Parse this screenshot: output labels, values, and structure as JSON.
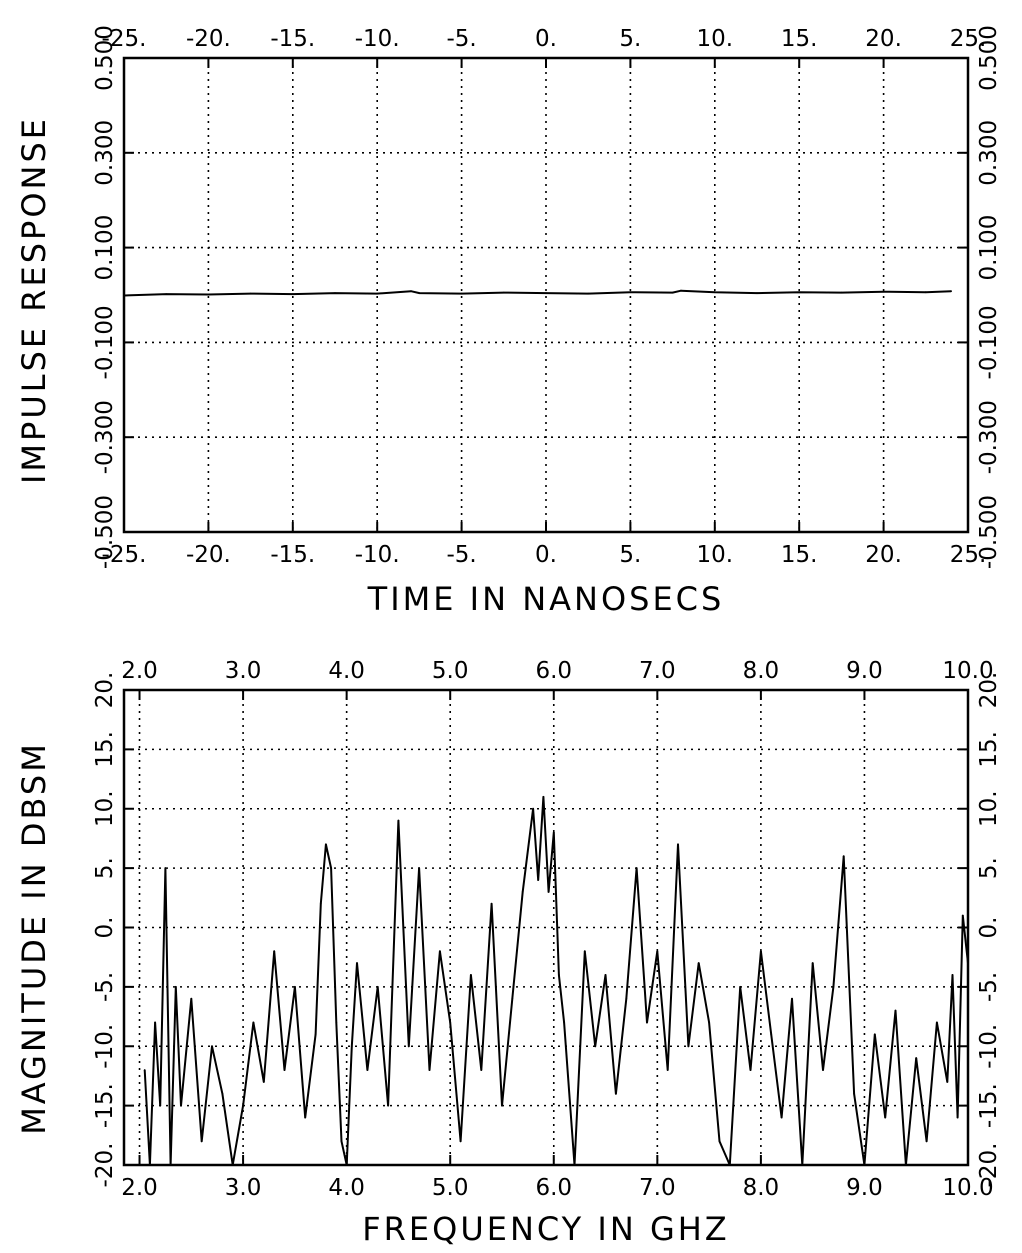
{
  "chart_data": [
    {
      "type": "line",
      "title": "",
      "xlabel": "TIME IN NANOSECS",
      "ylabel": "IMPULSE RESPONSE",
      "xlim": [
        -25,
        25
      ],
      "ylim": [
        -0.5,
        0.5
      ],
      "grid": true,
      "x_ticks": [
        -25,
        -20,
        -15,
        -10,
        -5,
        0,
        5,
        10,
        15,
        20,
        25
      ],
      "x_tick_labels": [
        "-25.",
        "-20.",
        "-15.",
        "-10.",
        "-5.",
        "0.",
        "5.",
        "10.",
        "15.",
        "20.",
        "25."
      ],
      "y_ticks": [
        -0.5,
        -0.3,
        -0.1,
        0.1,
        0.3,
        0.5
      ],
      "y_tick_labels": [
        "-0.500",
        "-0.300",
        "-0.100",
        "0.100",
        "0.300",
        "0.500"
      ],
      "series": [
        {
          "x": [
            -25,
            -22.5,
            -20,
            -17.5,
            -15,
            -12.5,
            -10,
            -8,
            -7.5,
            -5,
            -2.5,
            0,
            2.5,
            5,
            7.5,
            8,
            10,
            12.5,
            15,
            17.5,
            20,
            22.5,
            24
          ],
          "values": [
            -0.001,
            0.002,
            0.001,
            0.003,
            0.002,
            0.004,
            0.003,
            0.008,
            0.004,
            0.003,
            0.005,
            0.004,
            0.003,
            0.006,
            0.005,
            0.009,
            0.006,
            0.004,
            0.006,
            0.005,
            0.007,
            0.006,
            0.008
          ]
        }
      ]
    },
    {
      "type": "line",
      "title": "",
      "xlabel": "FREQUENCY IN GHZ",
      "ylabel": "MAGNITUDE IN DBSM",
      "xlim": [
        1.85,
        10.0
      ],
      "ylim": [
        -20,
        20
      ],
      "grid": true,
      "x_ticks": [
        2.0,
        3.0,
        4.0,
        5.0,
        6.0,
        7.0,
        8.0,
        9.0,
        10.0
      ],
      "x_tick_labels": [
        "2.0",
        "3.0",
        "4.0",
        "5.0",
        "6.0",
        "7.0",
        "8.0",
        "9.0",
        "10.0"
      ],
      "y_ticks": [
        -20,
        -15,
        -10,
        -5,
        0,
        5,
        10,
        15,
        20
      ],
      "y_tick_labels": [
        "-20.",
        "-15.",
        "-10.",
        "-5.",
        "0.",
        "5.",
        "10.",
        "15.",
        "20."
      ],
      "series": [
        {
          "x": [
            2.05,
            2.1,
            2.15,
            2.2,
            2.25,
            2.3,
            2.35,
            2.4,
            2.5,
            2.6,
            2.7,
            2.8,
            2.9,
            3.0,
            3.1,
            3.2,
            3.3,
            3.4,
            3.5,
            3.6,
            3.7,
            3.75,
            3.8,
            3.85,
            3.9,
            3.95,
            4.0,
            4.05,
            4.1,
            4.2,
            4.3,
            4.4,
            4.5,
            4.6,
            4.7,
            4.8,
            4.9,
            5.0,
            5.1,
            5.2,
            5.3,
            5.4,
            5.5,
            5.6,
            5.7,
            5.8,
            5.85,
            5.9,
            5.95,
            6.0,
            6.05,
            6.1,
            6.2,
            6.3,
            6.4,
            6.5,
            6.6,
            6.7,
            6.8,
            6.9,
            7.0,
            7.1,
            7.2,
            7.3,
            7.4,
            7.5,
            7.6,
            7.7,
            7.8,
            7.9,
            8.0,
            8.1,
            8.2,
            8.3,
            8.4,
            8.5,
            8.6,
            8.7,
            8.8,
            8.9,
            9.0,
            9.1,
            9.2,
            9.3,
            9.4,
            9.5,
            9.6,
            9.7,
            9.8,
            9.85,
            9.9,
            9.95,
            10.0
          ],
          "values": [
            -12,
            -20,
            -8,
            -15,
            5,
            -20,
            -5,
            -15,
            -6,
            -18,
            -10,
            -14,
            -20,
            -15,
            -8,
            -13,
            -2,
            -12,
            -5,
            -16,
            -9,
            2,
            7,
            5,
            -8,
            -18,
            -20,
            -10,
            -3,
            -12,
            -5,
            -15,
            9,
            -10,
            5,
            -12,
            -2,
            -8,
            -18,
            -4,
            -12,
            2,
            -15,
            -6,
            3,
            10,
            4,
            11,
            3,
            8,
            -4,
            -8,
            -20,
            -2,
            -10,
            -4,
            -14,
            -6,
            5,
            -8,
            -2,
            -12,
            7,
            -10,
            -3,
            -8,
            -18,
            -20,
            -5,
            -12,
            -2,
            -9,
            -16,
            -6,
            -20,
            -3,
            -12,
            -5,
            6,
            -14,
            -20,
            -9,
            -16,
            -7,
            -20,
            -11,
            -18,
            -8,
            -13,
            -4,
            -16,
            1,
            -3
          ]
        }
      ]
    }
  ]
}
